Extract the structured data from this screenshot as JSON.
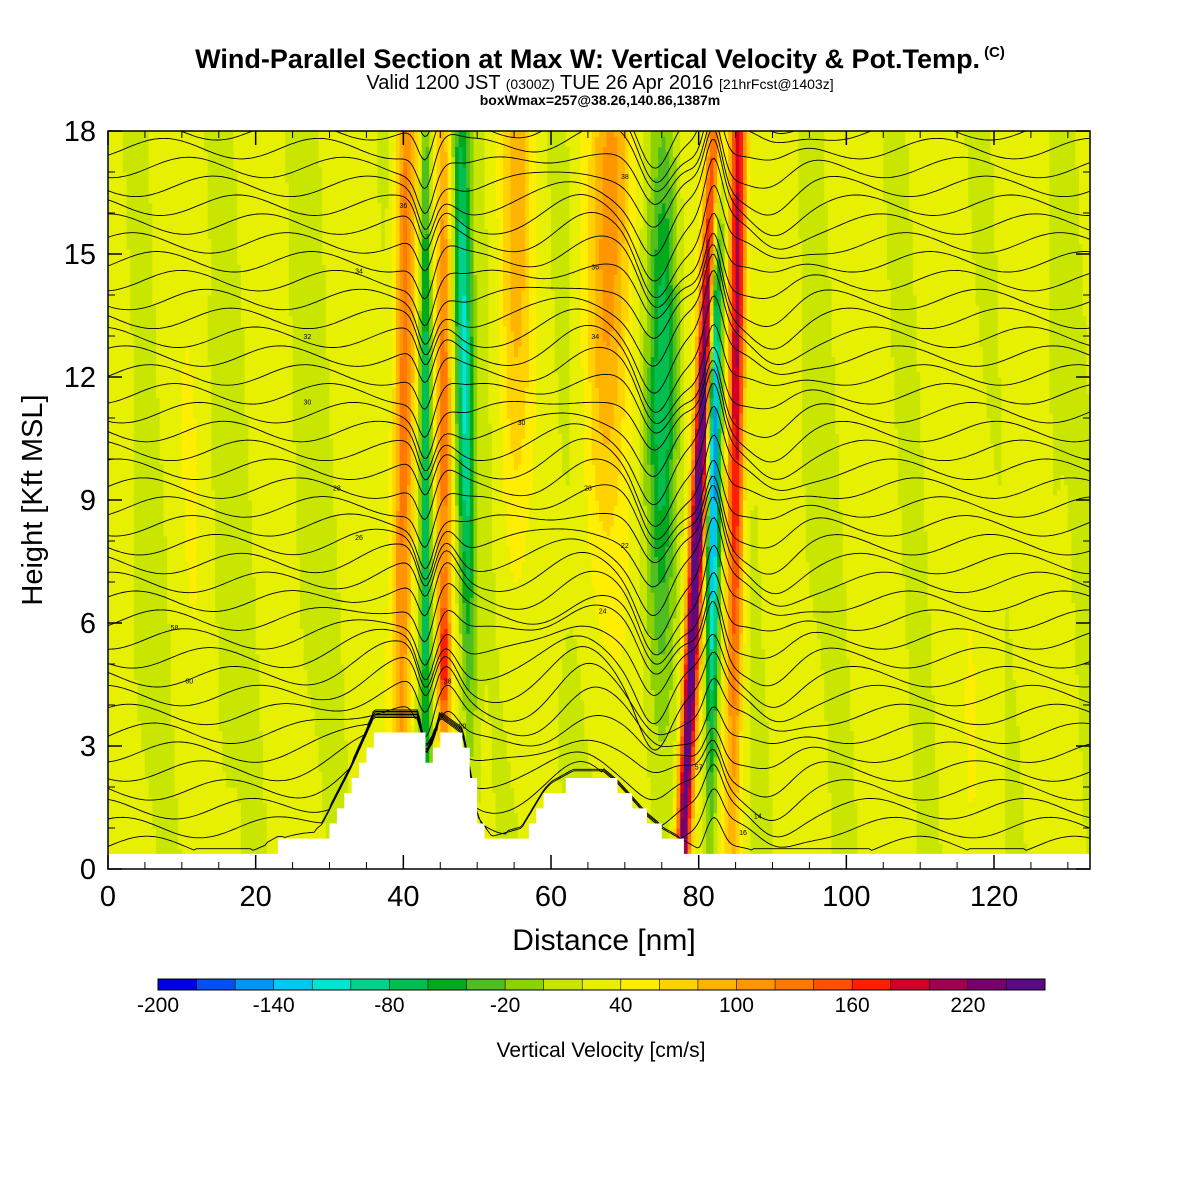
{
  "header": {
    "title": "Wind-Parallel Section at Max W: Vertical Velocity & Pot.Temp.",
    "copyright": "(C)",
    "valid_prefix": "Valid 1200 JST",
    "utc": "(0300Z)",
    "valid_date": "TUE 26 Apr 2016",
    "forecast": "[21hrFcst@1403z]",
    "boxmax": "boxWmax=257@38.26,140.86,1387m"
  },
  "chart_data": {
    "type": "heatmap",
    "xlabel": "Distance [nm]",
    "ylabel": "Height [Kft MSL]",
    "xlim": [
      0,
      133
    ],
    "ylim": [
      0,
      18
    ],
    "xticks": [
      0,
      20,
      40,
      60,
      80,
      100,
      120
    ],
    "yticks": [
      0,
      3,
      6,
      9,
      12,
      15,
      18
    ],
    "colorbar": {
      "label": "Vertical Velocity [cm/s]",
      "tick_labels": [
        "-200",
        "-140",
        "-80",
        "-20",
        "40",
        "100",
        "160",
        "220"
      ],
      "levels": [
        -200,
        -180,
        -160,
        -140,
        -120,
        -100,
        -80,
        -60,
        -40,
        -20,
        0,
        20,
        40,
        60,
        80,
        100,
        120,
        140,
        160,
        180,
        200,
        220
      ],
      "colors": [
        "#0000e6",
        "#0050f5",
        "#0096f5",
        "#00c8f0",
        "#00e6d2",
        "#00d28c",
        "#00be50",
        "#00aa1e",
        "#50be1e",
        "#8cd200",
        "#c8e600",
        "#e6f000",
        "#ffee00",
        "#ffd200",
        "#ffb400",
        "#ff9600",
        "#ff7800",
        "#ff5000",
        "#ff1e00",
        "#d20028",
        "#a00050",
        "#78006e",
        "#5a0a82"
      ]
    },
    "updraft_bands": [
      {
        "x_center": 40,
        "w_max": 120
      },
      {
        "x_center": 45.5,
        "w_max": 100
      },
      {
        "x_center": 55,
        "w_max": 60
      },
      {
        "x_center": 67,
        "w_max": 80
      },
      {
        "x_center": 80,
        "w_max": 257
      },
      {
        "x_center": 85,
        "w_max": 200
      }
    ],
    "downdraft_bands": [
      {
        "x_center": 43,
        "w_min": -120
      },
      {
        "x_center": 48.5,
        "w_min": -140
      },
      {
        "x_center": 75,
        "w_min": -100
      },
      {
        "x_center": 82,
        "w_min": -200
      }
    ],
    "terrain": [
      {
        "x": 0,
        "h": 0.3
      },
      {
        "x": 20,
        "h": 0.3
      },
      {
        "x": 23,
        "h": 0.6
      },
      {
        "x": 27,
        "h": 0.6
      },
      {
        "x": 29,
        "h": 0.9
      },
      {
        "x": 31,
        "h": 1.6
      },
      {
        "x": 33,
        "h": 2.3
      },
      {
        "x": 35,
        "h": 3.1
      },
      {
        "x": 36,
        "h": 3.5
      },
      {
        "x": 42,
        "h": 3.5
      },
      {
        "x": 43,
        "h": 2.6
      },
      {
        "x": 44,
        "h": 2.9
      },
      {
        "x": 45,
        "h": 3.5
      },
      {
        "x": 48,
        "h": 3.1
      },
      {
        "x": 49,
        "h": 2.2
      },
      {
        "x": 50,
        "h": 1.1
      },
      {
        "x": 52,
        "h": 0.6
      },
      {
        "x": 56,
        "h": 0.8
      },
      {
        "x": 57,
        "h": 1.1
      },
      {
        "x": 59,
        "h": 1.7
      },
      {
        "x": 60,
        "h": 1.9
      },
      {
        "x": 63,
        "h": 2.2
      },
      {
        "x": 67,
        "h": 2.2
      },
      {
        "x": 69,
        "h": 1.9
      },
      {
        "x": 71,
        "h": 1.5
      },
      {
        "x": 73,
        "h": 1.1
      },
      {
        "x": 75,
        "h": 0.8
      },
      {
        "x": 77,
        "h": 0.6
      },
      {
        "x": 80,
        "h": 0.3
      },
      {
        "x": 133,
        "h": 0.3
      }
    ],
    "isentropes": {
      "count": 40,
      "labels": [
        "58",
        "60",
        "26",
        "28",
        "30",
        "32",
        "34",
        "36",
        "38",
        "14",
        "16",
        "20",
        "22",
        "24",
        "28",
        "30",
        "34",
        "36",
        "38",
        "57"
      ]
    }
  }
}
